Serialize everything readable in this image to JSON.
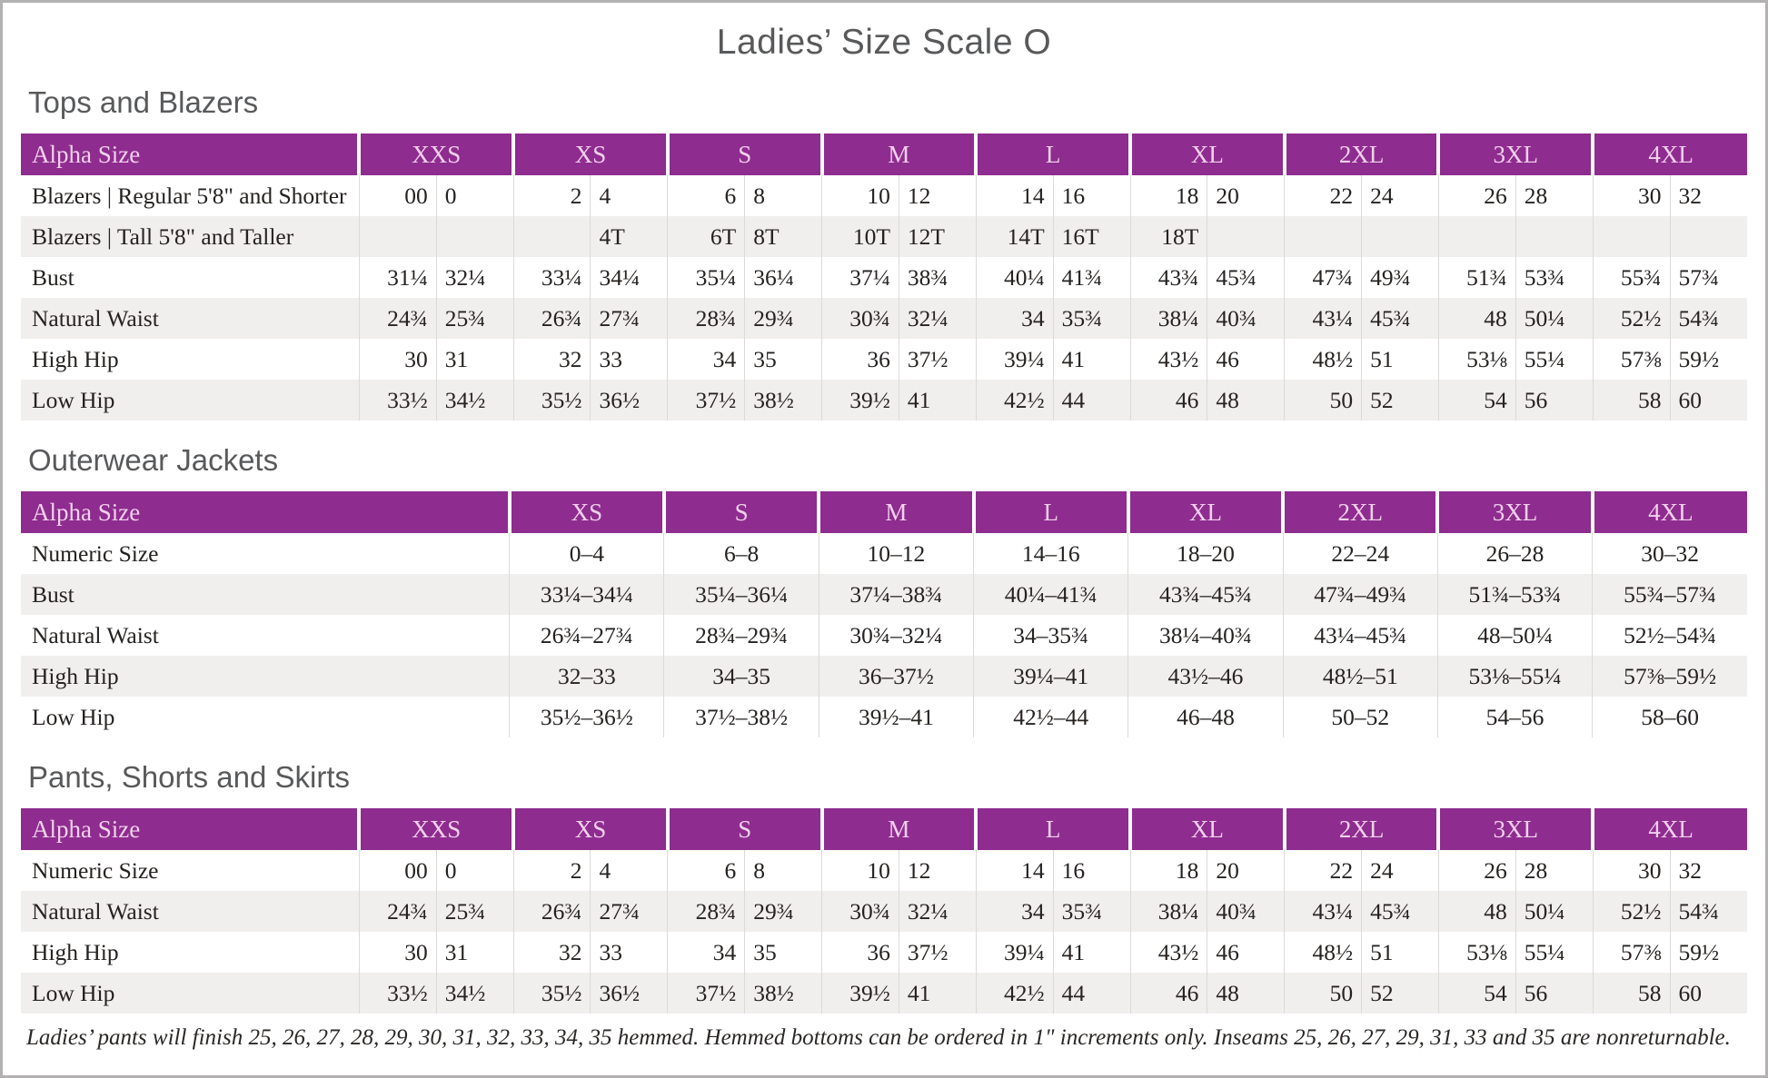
{
  "page": {
    "title": "Ladies’ Size Scale O",
    "footnote": "Ladies’ pants will finish 25, 26, 27, 28, 29, 30, 31, 32, 33, 34, 35 hemmed. Hemmed bottoms can be ordered in 1\" increments only. Inseams 25, 26, 27, 29, 31, 33 and 35 are nonreturnable."
  },
  "colors": {
    "header_purple": "#8e2c8f",
    "header_text_pink": "#f2d0ec",
    "heading_gray": "#58595b",
    "row_stripe": "#f1efed",
    "cell_divider": "#dcdad6"
  },
  "tables": [
    {
      "section_title": "Tops and Blazers",
      "layout": "paired",
      "header_label": "Alpha Size",
      "columns": [
        "XXS",
        "XS",
        "S",
        "M",
        "L",
        "XL",
        "2XL",
        "3XL",
        "4XL"
      ],
      "label_col_pct": 19.6,
      "rows": [
        {
          "label": "Blazers | Regular 5'8\" and Shorter",
          "values": [
            [
              "00",
              "0"
            ],
            [
              "2",
              "4"
            ],
            [
              "6",
              "8"
            ],
            [
              "10",
              "12"
            ],
            [
              "14",
              "16"
            ],
            [
              "18",
              "20"
            ],
            [
              "22",
              "24"
            ],
            [
              "26",
              "28"
            ],
            [
              "30",
              "32"
            ]
          ]
        },
        {
          "label": "Blazers | Tall 5'8\" and Taller",
          "values": [
            [
              "",
              ""
            ],
            [
              "",
              "4T"
            ],
            [
              "6T",
              "8T"
            ],
            [
              "10T",
              "12T"
            ],
            [
              "14T",
              "16T"
            ],
            [
              "18T",
              ""
            ],
            [
              "",
              ""
            ],
            [
              "",
              ""
            ],
            [
              "",
              ""
            ]
          ]
        },
        {
          "label": "Bust",
          "values": [
            [
              "31¼",
              "32¼"
            ],
            [
              "33¼",
              "34¼"
            ],
            [
              "35¼",
              "36¼"
            ],
            [
              "37¼",
              "38¾"
            ],
            [
              "40¼",
              "41¾"
            ],
            [
              "43¾",
              "45¾"
            ],
            [
              "47¾",
              "49¾"
            ],
            [
              "51¾",
              "53¾"
            ],
            [
              "55¾",
              "57¾"
            ]
          ]
        },
        {
          "label": "Natural Waist",
          "values": [
            [
              "24¾",
              "25¾"
            ],
            [
              "26¾",
              "27¾"
            ],
            [
              "28¾",
              "29¾"
            ],
            [
              "30¾",
              "32¼"
            ],
            [
              "34",
              "35¾"
            ],
            [
              "38¼",
              "40¾"
            ],
            [
              "43¼",
              "45¾"
            ],
            [
              "48",
              "50¼"
            ],
            [
              "52½",
              "54¾"
            ]
          ]
        },
        {
          "label": "High Hip",
          "values": [
            [
              "30",
              "31"
            ],
            [
              "32",
              "33"
            ],
            [
              "34",
              "35"
            ],
            [
              "36",
              "37½"
            ],
            [
              "39¼",
              "41"
            ],
            [
              "43½",
              "46"
            ],
            [
              "48½",
              "51"
            ],
            [
              "53⅛",
              "55¼"
            ],
            [
              "57⅜",
              "59½"
            ]
          ]
        },
        {
          "label": "Low Hip",
          "values": [
            [
              "33½",
              "34½"
            ],
            [
              "35½",
              "36½"
            ],
            [
              "37½",
              "38½"
            ],
            [
              "39½",
              "41"
            ],
            [
              "42½",
              "44"
            ],
            [
              "46",
              "48"
            ],
            [
              "50",
              "52"
            ],
            [
              "54",
              "56"
            ],
            [
              "58",
              "60"
            ]
          ]
        }
      ]
    },
    {
      "section_title": "Outerwear Jackets",
      "layout": "single",
      "header_label": "Alpha Size",
      "columns": [
        "XS",
        "S",
        "M",
        "L",
        "XL",
        "2XL",
        "3XL",
        "4XL"
      ],
      "label_col_pct": 28.3,
      "rows": [
        {
          "label": "Numeric Size",
          "values": [
            "0–4",
            "6–8",
            "10–12",
            "14–16",
            "18–20",
            "22–24",
            "26–28",
            "30–32"
          ]
        },
        {
          "label": "Bust",
          "values": [
            "33¼–34¼",
            "35¼–36¼",
            "37¼–38¾",
            "40¼–41¾",
            "43¾–45¾",
            "47¾–49¾",
            "51¾–53¾",
            "55¾–57¾"
          ]
        },
        {
          "label": "Natural Waist",
          "values": [
            "26¾–27¾",
            "28¾–29¾",
            "30¾–32¼",
            "34–35¾",
            "38¼–40¾",
            "43¼–45¾",
            "48–50¼",
            "52½–54¾"
          ]
        },
        {
          "label": "High Hip",
          "values": [
            "32–33",
            "34–35",
            "36–37½",
            "39¼–41",
            "43½–46",
            "48½–51",
            "53⅛–55¼",
            "57⅜–59½"
          ]
        },
        {
          "label": "Low Hip",
          "values": [
            "35½–36½",
            "37½–38½",
            "39½–41",
            "42½–44",
            "46–48",
            "50–52",
            "54–56",
            "58–60"
          ]
        }
      ]
    },
    {
      "section_title": "Pants, Shorts and Skirts",
      "layout": "paired",
      "header_label": "Alpha Size",
      "columns": [
        "XXS",
        "XS",
        "S",
        "M",
        "L",
        "XL",
        "2XL",
        "3XL",
        "4XL"
      ],
      "label_col_pct": 19.6,
      "rows": [
        {
          "label": "Numeric Size",
          "values": [
            [
              "00",
              "0"
            ],
            [
              "2",
              "4"
            ],
            [
              "6",
              "8"
            ],
            [
              "10",
              "12"
            ],
            [
              "14",
              "16"
            ],
            [
              "18",
              "20"
            ],
            [
              "22",
              "24"
            ],
            [
              "26",
              "28"
            ],
            [
              "30",
              "32"
            ]
          ]
        },
        {
          "label": "Natural Waist",
          "values": [
            [
              "24¾",
              "25¾"
            ],
            [
              "26¾",
              "27¾"
            ],
            [
              "28¾",
              "29¾"
            ],
            [
              "30¾",
              "32¼"
            ],
            [
              "34",
              "35¾"
            ],
            [
              "38¼",
              "40¾"
            ],
            [
              "43¼",
              "45¾"
            ],
            [
              "48",
              "50¼"
            ],
            [
              "52½",
              "54¾"
            ]
          ]
        },
        {
          "label": "High Hip",
          "values": [
            [
              "30",
              "31"
            ],
            [
              "32",
              "33"
            ],
            [
              "34",
              "35"
            ],
            [
              "36",
              "37½"
            ],
            [
              "39¼",
              "41"
            ],
            [
              "43½",
              "46"
            ],
            [
              "48½",
              "51"
            ],
            [
              "53⅛",
              "55¼"
            ],
            [
              "57⅜",
              "59½"
            ]
          ]
        },
        {
          "label": "Low Hip",
          "values": [
            [
              "33½",
              "34½"
            ],
            [
              "35½",
              "36½"
            ],
            [
              "37½",
              "38½"
            ],
            [
              "39½",
              "41"
            ],
            [
              "42½",
              "44"
            ],
            [
              "46",
              "48"
            ],
            [
              "50",
              "52"
            ],
            [
              "54",
              "56"
            ],
            [
              "58",
              "60"
            ]
          ]
        }
      ]
    }
  ]
}
